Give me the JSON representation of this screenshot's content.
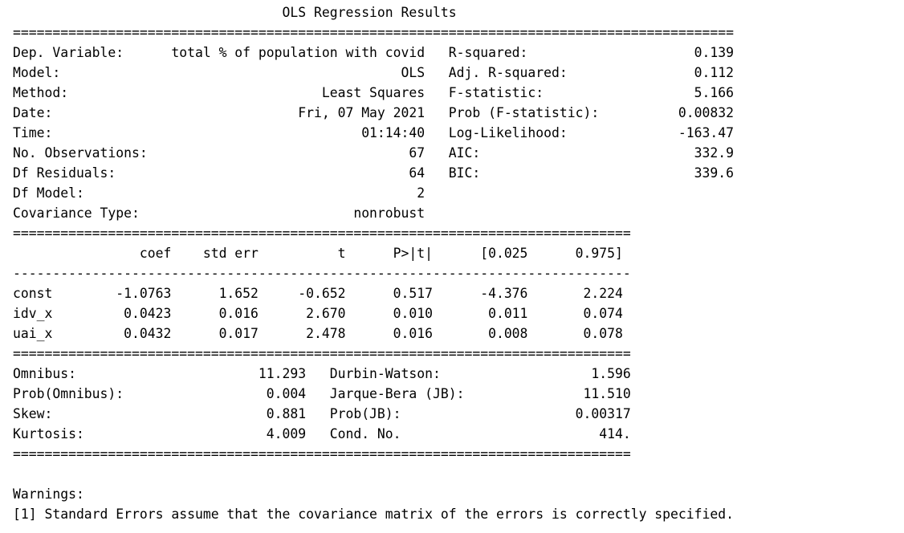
{
  "title": "OLS Regression Results",
  "separators": {
    "wide_eq": "==============================================================================",
    "narrow_eq": "==============================================================================",
    "narrow_dash": "------------------------------------------------------------------------------"
  },
  "header_left": [
    {
      "label": "Dep. Variable:",
      "value": "total % of population with covid"
    },
    {
      "label": "Model:",
      "value": "OLS"
    },
    {
      "label": "Method:",
      "value": "Least Squares"
    },
    {
      "label": "Date:",
      "value": "Fri, 07 May 2021"
    },
    {
      "label": "Time:",
      "value": "01:14:40"
    },
    {
      "label": "No. Observations:",
      "value": "67"
    },
    {
      "label": "Df Residuals:",
      "value": "64"
    },
    {
      "label": "Df Model:",
      "value": "2"
    },
    {
      "label": "Covariance Type:",
      "value": "nonrobust"
    }
  ],
  "header_right": [
    {
      "label": "R-squared:",
      "value": "0.139"
    },
    {
      "label": "Adj. R-squared:",
      "value": "0.112"
    },
    {
      "label": "F-statistic:",
      "value": "5.166"
    },
    {
      "label": "Prob (F-statistic):",
      "value": "0.00832"
    },
    {
      "label": "Log-Likelihood:",
      "value": "-163.47"
    },
    {
      "label": "AIC:",
      "value": "332.9"
    },
    {
      "label": "BIC:",
      "value": "339.6"
    }
  ],
  "coef_table": {
    "columns": [
      "coef",
      "std err",
      "t",
      "P>|t|",
      "[0.025",
      "0.975]"
    ],
    "rows": [
      {
        "name": "const",
        "values": [
          "-1.0763",
          "1.652",
          "-0.652",
          "0.517",
          "-4.376",
          "2.224"
        ]
      },
      {
        "name": "idv_x",
        "values": [
          "0.0423",
          "0.016",
          "2.670",
          "0.010",
          "0.011",
          "0.074"
        ]
      },
      {
        "name": "uai_x",
        "values": [
          "0.0432",
          "0.017",
          "2.478",
          "0.016",
          "0.008",
          "0.078"
        ]
      }
    ]
  },
  "diagnostics": [
    {
      "left_label": "Omnibus:",
      "left_value": "11.293",
      "right_label": "Durbin-Watson:",
      "right_value": "1.596"
    },
    {
      "left_label": "Prob(Omnibus):",
      "left_value": "0.004",
      "right_label": "Jarque-Bera (JB):",
      "right_value": "11.510"
    },
    {
      "left_label": "Skew:",
      "left_value": "0.881",
      "right_label": "Prob(JB):",
      "right_value": "0.00317"
    },
    {
      "left_label": "Kurtosis:",
      "left_value": "4.009",
      "right_label": "Cond. No.",
      "right_value": "414."
    }
  ],
  "warnings": {
    "heading": "Warnings:",
    "items": [
      "[1] Standard Errors assume that the covariance matrix of the errors is correctly specified."
    ]
  }
}
